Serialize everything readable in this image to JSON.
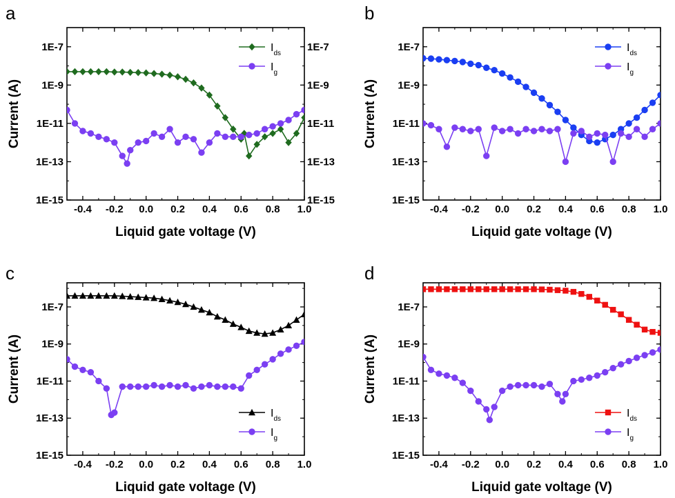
{
  "chart_data": [
    {
      "id": "a",
      "type": "line",
      "panel_label": "a",
      "xlabel": "Liquid gate voltage (V)",
      "ylabel": "Current (A)",
      "xlim": [
        -0.5,
        1.0
      ],
      "ylim": [
        1e-15,
        1e-06
      ],
      "y_scale": "log",
      "xticks": [
        -0.4,
        -0.2,
        0.0,
        0.2,
        0.4,
        0.6,
        0.8,
        1.0
      ],
      "xtick_labels": [
        "-0.4",
        "-0.2",
        "0.0",
        "0.2",
        "0.4",
        "0.6",
        "0.8",
        "1.0"
      ],
      "yticks": [
        1e-07,
        1e-09,
        1e-11,
        1e-13,
        1e-15
      ],
      "ytick_labels": [
        "1E-7",
        "1E-9",
        "1E-11",
        "1E-13",
        "1E-15"
      ],
      "right_ytick_labels": [
        "1E-7",
        "1E-9",
        "1E-11",
        "1E-13",
        "1E-15"
      ],
      "legend_position": "top-right",
      "series": [
        {
          "name": "ds",
          "legend_main": "I",
          "legend_sub": "ds",
          "color": "#1f6b1f",
          "marker": "diamond",
          "x": [
            -0.5,
            -0.45,
            -0.4,
            -0.35,
            -0.3,
            -0.25,
            -0.2,
            -0.15,
            -0.1,
            -0.05,
            0.0,
            0.05,
            0.1,
            0.15,
            0.2,
            0.25,
            0.3,
            0.35,
            0.4,
            0.45,
            0.5,
            0.55,
            0.6,
            0.62,
            0.65,
            0.7,
            0.75,
            0.8,
            0.85,
            0.9,
            0.95,
            1.0
          ],
          "y": [
            5e-09,
            5e-09,
            5e-09,
            5e-09,
            5e-09,
            5e-09,
            4.8e-09,
            4.8e-09,
            4.6e-09,
            4.5e-09,
            4.3e-09,
            4e-09,
            3.7e-09,
            3.3e-09,
            2.7e-09,
            2e-09,
            1.3e-09,
            7e-10,
            3e-10,
            8e-11,
            2e-11,
            5e-12,
            1.5e-12,
            3e-12,
            2e-13,
            8e-13,
            2e-12,
            3e-12,
            5e-12,
            1e-12,
            3e-12,
            2e-11
          ]
        },
        {
          "name": "g",
          "legend_main": "I",
          "legend_sub": "g",
          "color": "#7b3ff2",
          "marker": "circle",
          "x": [
            -0.5,
            -0.45,
            -0.4,
            -0.35,
            -0.3,
            -0.25,
            -0.2,
            -0.15,
            -0.12,
            -0.1,
            -0.05,
            0.0,
            0.05,
            0.1,
            0.15,
            0.2,
            0.25,
            0.3,
            0.35,
            0.4,
            0.45,
            0.5,
            0.55,
            0.6,
            0.65,
            0.7,
            0.75,
            0.8,
            0.85,
            0.9,
            0.95,
            1.0
          ],
          "y": [
            5e-11,
            1e-11,
            4e-12,
            3e-12,
            2e-12,
            1.5e-12,
            1e-12,
            2e-13,
            8e-14,
            4e-13,
            1e-12,
            1.2e-12,
            3e-12,
            2e-12,
            5e-12,
            1e-12,
            2e-12,
            1.5e-12,
            3e-13,
            1e-12,
            3e-12,
            2e-12,
            2e-12,
            2e-12,
            2.5e-12,
            3e-12,
            5e-12,
            7e-12,
            1e-11,
            1.5e-11,
            3e-11,
            5e-11
          ]
        }
      ]
    },
    {
      "id": "b",
      "type": "line",
      "panel_label": "b",
      "xlabel": "Liquid gate voltage (V)",
      "ylabel": "Current (A)",
      "xlim": [
        -0.5,
        1.0
      ],
      "ylim": [
        1e-15,
        1e-06
      ],
      "y_scale": "log",
      "xticks": [
        -0.4,
        -0.2,
        0.0,
        0.2,
        0.4,
        0.6,
        0.8,
        1.0
      ],
      "xtick_labels": [
        "-0.4",
        "-0.2",
        "0.0",
        "0.2",
        "0.4",
        "0.6",
        "0.8",
        "1.0"
      ],
      "yticks": [
        1e-07,
        1e-09,
        1e-11,
        1e-13,
        1e-15
      ],
      "ytick_labels": [
        "1E-7",
        "1E-9",
        "1E-11",
        "1E-13",
        "1E-15"
      ],
      "legend_position": "top-right",
      "series": [
        {
          "name": "ds",
          "legend_main": "I",
          "legend_sub": "ds",
          "color": "#1a3ef2",
          "marker": "circle",
          "x": [
            -0.5,
            -0.45,
            -0.4,
            -0.35,
            -0.3,
            -0.25,
            -0.2,
            -0.15,
            -0.1,
            -0.05,
            0.0,
            0.05,
            0.1,
            0.15,
            0.2,
            0.25,
            0.3,
            0.35,
            0.4,
            0.45,
            0.5,
            0.55,
            0.6,
            0.65,
            0.7,
            0.75,
            0.8,
            0.85,
            0.9,
            0.95,
            1.0
          ],
          "y": [
            2.5e-08,
            2.4e-08,
            2.2e-08,
            2e-08,
            1.8e-08,
            1.6e-08,
            1.3e-08,
            1.1e-08,
            8e-09,
            6e-09,
            4e-09,
            2.5e-09,
            1.5e-09,
            8e-10,
            4e-10,
            2e-10,
            9e-11,
            4e-11,
            1.5e-11,
            6e-12,
            2.5e-12,
            1.2e-12,
            1e-12,
            1.5e-12,
            2.5e-12,
            5e-12,
            1e-11,
            2e-11,
            5e-11,
            1.2e-10,
            3e-10
          ]
        },
        {
          "name": "g",
          "legend_main": "I",
          "legend_sub": "g",
          "color": "#7b3ff2",
          "marker": "circle",
          "x": [
            -0.5,
            -0.45,
            -0.4,
            -0.35,
            -0.3,
            -0.25,
            -0.2,
            -0.15,
            -0.1,
            -0.05,
            0.0,
            0.05,
            0.1,
            0.15,
            0.2,
            0.25,
            0.3,
            0.35,
            0.4,
            0.45,
            0.5,
            0.55,
            0.6,
            0.65,
            0.7,
            0.75,
            0.8,
            0.85,
            0.9,
            0.95,
            1.0
          ],
          "y": [
            1e-11,
            8e-12,
            5e-12,
            6e-13,
            6e-12,
            5e-12,
            4e-12,
            5e-12,
            2e-13,
            6e-12,
            4e-12,
            5e-12,
            3e-12,
            5e-12,
            4e-12,
            5e-12,
            4e-12,
            5e-12,
            1e-13,
            3e-12,
            4e-12,
            2e-12,
            3e-12,
            2.5e-12,
            1e-13,
            3e-12,
            2e-12,
            5e-12,
            2e-12,
            5e-12,
            1e-11
          ]
        }
      ]
    },
    {
      "id": "c",
      "type": "line",
      "panel_label": "c",
      "xlabel": "Liquid gate voltage (V)",
      "ylabel": "Current (A)",
      "xlim": [
        -0.5,
        1.0
      ],
      "ylim": [
        1e-15,
        2e-06
      ],
      "y_scale": "log",
      "xticks": [
        -0.4,
        -0.2,
        0.0,
        0.2,
        0.4,
        0.6,
        0.8,
        1.0
      ],
      "xtick_labels": [
        "-0.4",
        "-0.2",
        "0.0",
        "0.2",
        "0.4",
        "0.6",
        "0.8",
        "1.0"
      ],
      "yticks": [
        1e-07,
        1e-09,
        1e-11,
        1e-13,
        1e-15
      ],
      "ytick_labels": [
        "1E-7",
        "1E-9",
        "1E-11",
        "1E-13",
        "1E-15"
      ],
      "legend_position": "bottom-right",
      "series": [
        {
          "name": "ds",
          "legend_main": "I",
          "legend_sub": "ds",
          "color": "#000000",
          "marker": "triangle",
          "x": [
            -0.5,
            -0.45,
            -0.4,
            -0.35,
            -0.3,
            -0.25,
            -0.2,
            -0.15,
            -0.1,
            -0.05,
            0.0,
            0.05,
            0.1,
            0.15,
            0.2,
            0.25,
            0.3,
            0.35,
            0.4,
            0.45,
            0.5,
            0.55,
            0.6,
            0.65,
            0.7,
            0.75,
            0.8,
            0.85,
            0.9,
            0.95,
            1.0
          ],
          "y": [
            4e-07,
            4e-07,
            4e-07,
            4e-07,
            4e-07,
            4e-07,
            4e-07,
            3.8e-07,
            3.6e-07,
            3.4e-07,
            3.2e-07,
            3e-07,
            2.6e-07,
            2.2e-07,
            1.8e-07,
            1.4e-07,
            1e-07,
            7e-08,
            5e-08,
            3e-08,
            2e-08,
            1.2e-08,
            8e-09,
            5e-09,
            4e-09,
            3.5e-09,
            4e-09,
            6e-09,
            1e-08,
            2e-08,
            4e-08
          ]
        },
        {
          "name": "g",
          "legend_main": "I",
          "legend_sub": "g",
          "color": "#7b3ff2",
          "marker": "circle",
          "x": [
            -0.5,
            -0.45,
            -0.4,
            -0.35,
            -0.3,
            -0.25,
            -0.22,
            -0.2,
            -0.15,
            -0.1,
            -0.05,
            0.0,
            0.05,
            0.1,
            0.15,
            0.2,
            0.25,
            0.3,
            0.35,
            0.4,
            0.45,
            0.5,
            0.55,
            0.6,
            0.65,
            0.7,
            0.75,
            0.8,
            0.85,
            0.9,
            0.95,
            1.0
          ],
          "y": [
            1.5e-10,
            6e-11,
            4e-11,
            3e-11,
            1e-11,
            4e-12,
            1.5e-13,
            2e-13,
            5e-12,
            5e-12,
            5e-12,
            5e-12,
            6e-12,
            5e-12,
            6e-12,
            5e-12,
            6e-12,
            4e-12,
            5e-12,
            6e-12,
            5e-12,
            5e-12,
            5e-12,
            4e-12,
            2e-11,
            4e-11,
            8e-11,
            1.5e-10,
            3e-10,
            5e-10,
            8e-10,
            1.3e-09
          ]
        }
      ]
    },
    {
      "id": "d",
      "type": "line",
      "panel_label": "d",
      "xlabel": "Liquid gate voltage (V)",
      "ylabel": "Current (A)",
      "xlim": [
        -0.5,
        1.0
      ],
      "ylim": [
        1e-15,
        2e-06
      ],
      "y_scale": "log",
      "xticks": [
        -0.4,
        -0.2,
        0.0,
        0.2,
        0.4,
        0.6,
        0.8,
        1.0
      ],
      "xtick_labels": [
        "-0.4",
        "-0.2",
        "0.0",
        "0.2",
        "0.4",
        "0.6",
        "0.8",
        "1.0"
      ],
      "yticks": [
        1e-07,
        1e-09,
        1e-11,
        1e-13,
        1e-15
      ],
      "ytick_labels": [
        "1E-7",
        "1E-9",
        "1E-11",
        "1E-13",
        "1E-15"
      ],
      "legend_position": "bottom-right",
      "series": [
        {
          "name": "ds",
          "legend_main": "I",
          "legend_sub": "ds",
          "color": "#ee1111",
          "marker": "square",
          "x": [
            -0.5,
            -0.45,
            -0.4,
            -0.35,
            -0.3,
            -0.25,
            -0.2,
            -0.15,
            -0.1,
            -0.05,
            0.0,
            0.05,
            0.1,
            0.15,
            0.2,
            0.25,
            0.3,
            0.35,
            0.4,
            0.45,
            0.5,
            0.55,
            0.6,
            0.65,
            0.7,
            0.75,
            0.8,
            0.85,
            0.9,
            0.95,
            1.0
          ],
          "y": [
            9e-07,
            9e-07,
            9e-07,
            9e-07,
            9e-07,
            9e-07,
            9e-07,
            9e-07,
            9e-07,
            9e-07,
            9e-07,
            9e-07,
            9e-07,
            9e-07,
            9e-07,
            8.8e-07,
            8.5e-07,
            8e-07,
            7.5e-07,
            6.5e-07,
            5e-07,
            3.5e-07,
            2.2e-07,
            1.3e-07,
            7e-08,
            4e-08,
            2e-08,
            1.1e-08,
            6e-09,
            4.5e-09,
            4e-09
          ]
        },
        {
          "name": "g",
          "legend_main": "I",
          "legend_sub": "g",
          "color": "#7b3ff2",
          "marker": "circle",
          "x": [
            -0.5,
            -0.45,
            -0.4,
            -0.35,
            -0.3,
            -0.25,
            -0.2,
            -0.15,
            -0.1,
            -0.08,
            -0.05,
            0.0,
            0.05,
            0.1,
            0.15,
            0.2,
            0.25,
            0.3,
            0.35,
            0.38,
            0.4,
            0.45,
            0.5,
            0.55,
            0.6,
            0.65,
            0.7,
            0.75,
            0.8,
            0.85,
            0.9,
            0.95,
            1.0
          ],
          "y": [
            2e-10,
            4e-11,
            2.5e-11,
            2e-11,
            1.5e-11,
            8e-12,
            3e-12,
            8e-13,
            3e-13,
            8e-14,
            4e-13,
            3e-12,
            5e-12,
            6e-12,
            6e-12,
            6e-12,
            5e-12,
            7e-12,
            2e-12,
            8e-13,
            2e-12,
            1e-11,
            1.2e-11,
            1.5e-11,
            2e-11,
            3e-11,
            5e-11,
            8e-11,
            1.2e-10,
            1.8e-10,
            2.5e-10,
            3.5e-10,
            5e-10
          ]
        }
      ]
    }
  ]
}
